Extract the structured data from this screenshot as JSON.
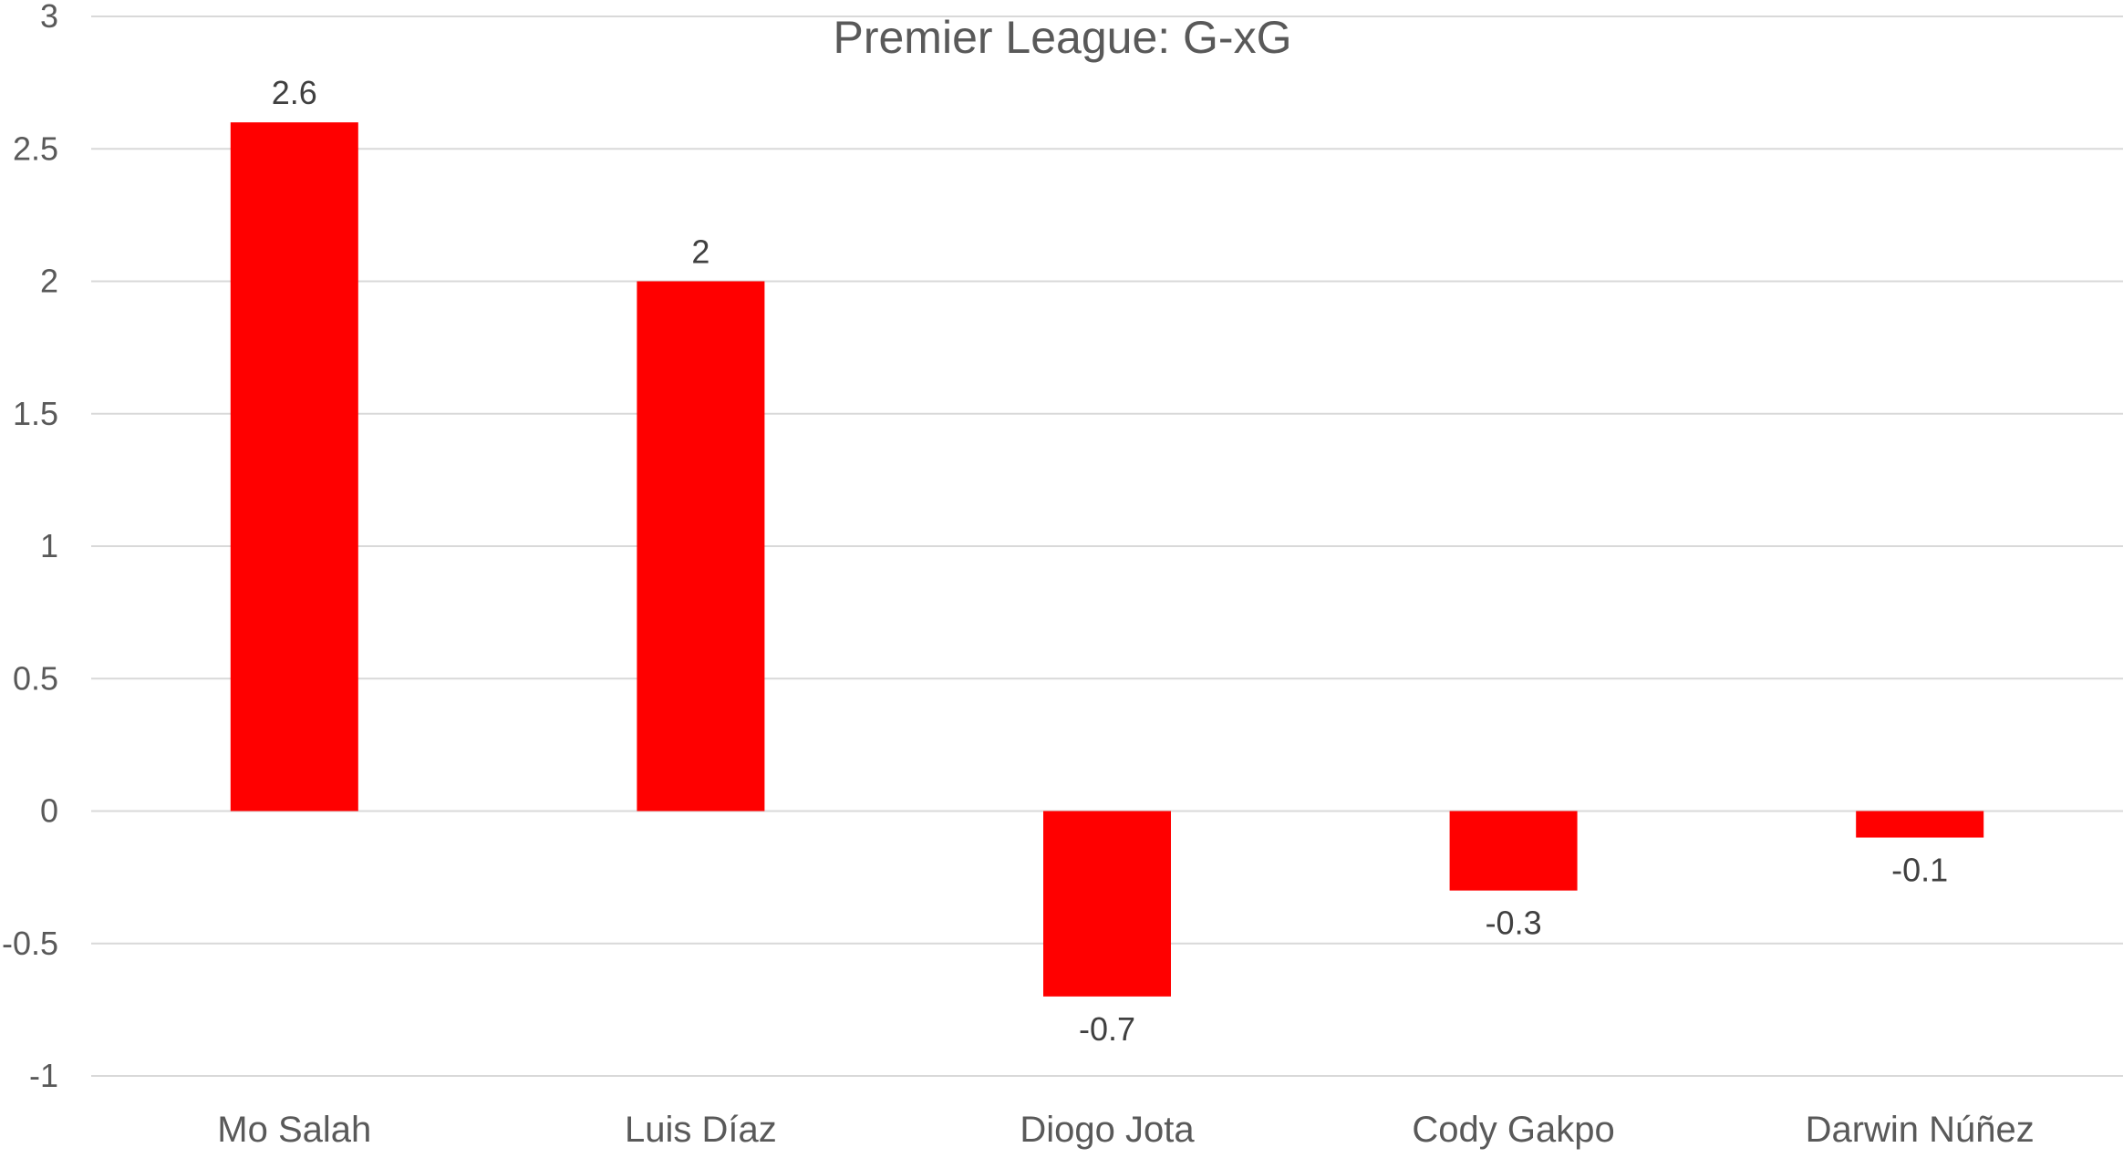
{
  "chart_data": {
    "type": "bar",
    "title": "Premier League: G-xG",
    "categories": [
      "Mo Salah",
      "Luis Díaz",
      "Diogo Jota",
      "Cody Gakpo",
      "Darwin Núñez"
    ],
    "values": [
      2.6,
      2,
      -0.7,
      -0.3,
      -0.1
    ],
    "data_labels": [
      "2.6",
      "2",
      "-0.7",
      "-0.3",
      "-0.1"
    ],
    "ylim": [
      -1,
      3
    ],
    "yticks": [
      3,
      2.5,
      2,
      1.5,
      1,
      0.5,
      0,
      -0.5,
      -1
    ],
    "ytick_labels": [
      "3",
      "2.5",
      "2",
      "1.5",
      "1",
      "0.5",
      "0",
      "-0.5",
      "-1"
    ],
    "grid": true,
    "bar_color": "#ff0000",
    "xlabel": "",
    "ylabel": ""
  }
}
